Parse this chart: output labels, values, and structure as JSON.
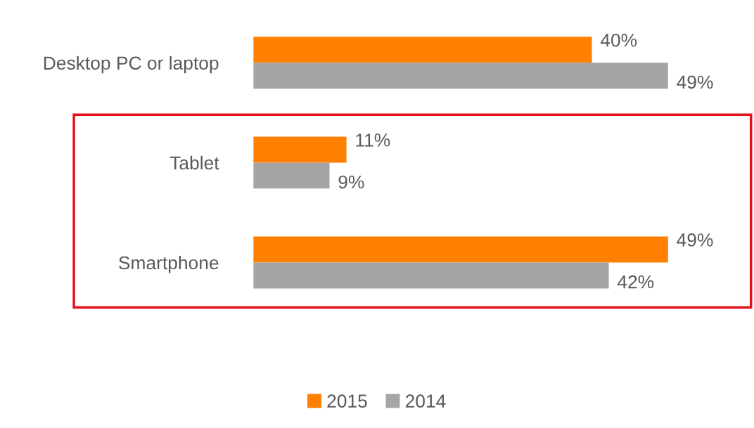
{
  "chart_data": {
    "type": "bar",
    "orientation": "horizontal",
    "legend": "bottom",
    "categories": [
      "Desktop PC or laptop",
      "Tablet",
      "Smartphone"
    ],
    "series": [
      {
        "name": "2015",
        "color": "#ff8000",
        "values": [
          40,
          11,
          49
        ],
        "value_labels": [
          "40%",
          "11%",
          "49%"
        ]
      },
      {
        "name": "2014",
        "color": "#a5a5a5",
        "values": [
          49,
          9,
          42
        ],
        "value_labels": [
          "49%",
          "9%",
          "42%"
        ]
      }
    ]
  }
}
